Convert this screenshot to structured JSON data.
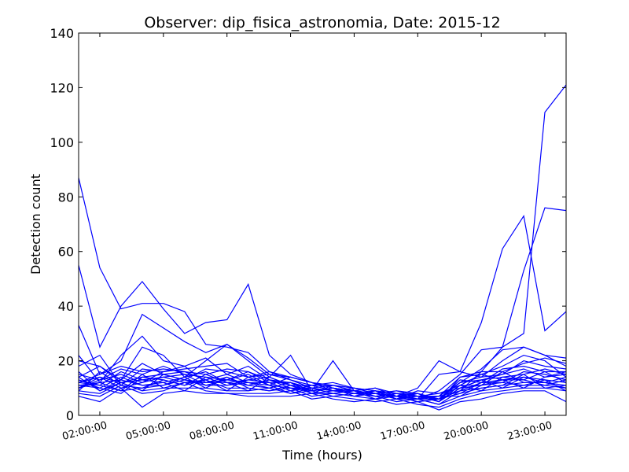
{
  "chart_data": {
    "type": "line",
    "title": "Observer: dip_fisica_astronomia, Date: 2015-12",
    "xlabel": "Time (hours)",
    "ylabel": "Detection count",
    "x_unit": "hour of day",
    "xlim": [
      1,
      24
    ],
    "ylim": [
      0,
      140
    ],
    "y_ticks": [
      0,
      20,
      40,
      60,
      80,
      100,
      120,
      140
    ],
    "x_ticks": [
      {
        "value": 2,
        "label": "02:00:00"
      },
      {
        "value": 5,
        "label": "05:00:00"
      },
      {
        "value": 8,
        "label": "08:00:00"
      },
      {
        "value": 11,
        "label": "11:00:00"
      },
      {
        "value": 14,
        "label": "14:00:00"
      },
      {
        "value": 17,
        "label": "17:00:00"
      },
      {
        "value": 20,
        "label": "20:00:00"
      },
      {
        "value": 23,
        "label": "23:00:00"
      }
    ],
    "line_color": "#0000ff",
    "x": [
      1,
      2,
      3,
      4,
      5,
      6,
      7,
      8,
      9,
      10,
      11,
      12,
      13,
      14,
      15,
      16,
      17,
      18,
      19,
      20,
      21,
      22,
      23,
      24
    ],
    "series": [
      {
        "values": [
          87,
          54,
          39,
          41,
          41,
          38,
          26,
          25,
          23,
          16,
          14,
          12,
          11,
          10,
          9,
          8,
          7,
          6,
          9,
          16,
          25,
          30,
          111,
          121
        ]
      },
      {
        "values": [
          55,
          25,
          40,
          49,
          39,
          30,
          34,
          35,
          48,
          22,
          15,
          12,
          10,
          9,
          8,
          7,
          6,
          9,
          15,
          24,
          25,
          53,
          76,
          75
        ]
      },
      {
        "values": [
          33,
          15,
          20,
          37,
          32,
          27,
          23,
          26,
          21,
          15,
          14,
          12,
          10,
          9,
          8,
          7,
          6,
          15,
          16,
          34,
          61,
          73,
          31,
          38
        ]
      },
      {
        "values": [
          22,
          12,
          22,
          29,
          20,
          18,
          21,
          15,
          18,
          13,
          12,
          10,
          9,
          9,
          8,
          7,
          8,
          6,
          12,
          17,
          24,
          25,
          22,
          18
        ]
      },
      {
        "values": [
          20,
          18,
          13,
          25,
          22,
          14,
          20,
          26,
          20,
          14,
          22,
          9,
          20,
          9,
          10,
          7,
          10,
          20,
          16,
          14,
          20,
          25,
          22,
          21
        ]
      },
      {
        "values": [
          18,
          22,
          11,
          17,
          16,
          17,
          18,
          19,
          14,
          15,
          13,
          11,
          11,
          10,
          8,
          9,
          8,
          5,
          14,
          15,
          18,
          22,
          20,
          14
        ]
      },
      {
        "values": [
          15,
          13,
          17,
          15,
          18,
          15,
          14,
          13,
          16,
          12,
          12,
          9,
          10,
          8,
          9,
          7,
          7,
          7,
          12,
          14,
          15,
          20,
          18,
          17
        ]
      },
      {
        "values": [
          14,
          18,
          12,
          14,
          15,
          16,
          13,
          15,
          12,
          11,
          10,
          10,
          9,
          9,
          7,
          8,
          6,
          6,
          13,
          12,
          17,
          18,
          16,
          16
        ]
      },
      {
        "values": [
          13,
          11,
          16,
          13,
          12,
          14,
          16,
          12,
          13,
          14,
          11,
          9,
          10,
          7,
          8,
          6,
          9,
          8,
          10,
          13,
          14,
          15,
          17,
          15
        ]
      },
      {
        "values": [
          12,
          14,
          10,
          12,
          14,
          12,
          12,
          14,
          11,
          10,
          12,
          8,
          9,
          8,
          7,
          8,
          7,
          5,
          11,
          11,
          12,
          16,
          15,
          13
        ]
      },
      {
        "values": [
          11,
          10,
          14,
          11,
          11,
          13,
          11,
          11,
          12,
          12,
          9,
          10,
          8,
          9,
          8,
          6,
          6,
          4,
          9,
          12,
          13,
          14,
          13,
          12
        ]
      },
      {
        "values": [
          10,
          12,
          9,
          10,
          13,
          11,
          13,
          10,
          10,
          9,
          10,
          7,
          8,
          7,
          6,
          7,
          5,
          6,
          8,
          10,
          11,
          12,
          12,
          11
        ]
      },
      {
        "values": [
          9,
          8,
          12,
          9,
          10,
          10,
          10,
          9,
          9,
          10,
          8,
          9,
          7,
          8,
          7,
          5,
          6,
          4,
          7,
          9,
          10,
          11,
          11,
          10
        ]
      },
      {
        "values": [
          8,
          7,
          11,
          8,
          9,
          12,
          9,
          8,
          8,
          8,
          9,
          6,
          7,
          6,
          5,
          6,
          4,
          3,
          6,
          8,
          9,
          10,
          10,
          9
        ]
      },
      {
        "values": [
          7,
          5,
          10,
          3,
          8,
          9,
          8,
          8,
          7,
          7,
          7,
          8,
          6,
          5,
          6,
          4,
          5,
          2,
          5,
          6,
          8,
          9,
          9,
          5
        ]
      },
      {
        "values": [
          12,
          15,
          18,
          16,
          17,
          16,
          15,
          17,
          16,
          13,
          11,
          11,
          12,
          10,
          9,
          8,
          7,
          7,
          14,
          16,
          16,
          19,
          21,
          19
        ]
      },
      {
        "values": [
          16,
          9,
          13,
          19,
          15,
          13,
          17,
          16,
          14,
          16,
          13,
          10,
          11,
          9,
          10,
          8,
          8,
          6,
          12,
          13,
          15,
          17,
          14,
          15
        ]
      },
      {
        "values": [
          10,
          13,
          15,
          12,
          16,
          18,
          12,
          13,
          15,
          11,
          14,
          12,
          9,
          10,
          8,
          9,
          7,
          8,
          11,
          15,
          13,
          13,
          16,
          12
        ]
      },
      {
        "values": [
          13,
          10,
          8,
          14,
          13,
          11,
          15,
          12,
          11,
          13,
          10,
          9,
          10,
          8,
          9,
          6,
          7,
          5,
          10,
          11,
          16,
          12,
          12,
          14
        ]
      },
      {
        "values": [
          9,
          16,
          11,
          10,
          11,
          14,
          10,
          14,
          10,
          9,
          11,
          8,
          8,
          9,
          7,
          7,
          6,
          7,
          9,
          10,
          11,
          15,
          10,
          11
        ]
      },
      {
        "values": [
          11,
          12,
          13,
          11,
          12,
          9,
          14,
          11,
          13,
          12,
          9,
          11,
          9,
          8,
          8,
          7,
          5,
          6,
          8,
          12,
          12,
          11,
          13,
          9
        ]
      },
      {
        "values": [
          14,
          9,
          12,
          13,
          14,
          15,
          11,
          13,
          12,
          10,
          12,
          9,
          10,
          9,
          6,
          8,
          7,
          6,
          11,
          9,
          14,
          13,
          11,
          13
        ]
      },
      {
        "values": [
          12,
          11,
          9,
          15,
          10,
          12,
          13,
          9,
          14,
          11,
          8,
          10,
          8,
          7,
          9,
          6,
          8,
          5,
          10,
          13,
          10,
          14,
          12,
          10
        ]
      },
      {
        "values": [
          10,
          14,
          12,
          9,
          15,
          13,
          12,
          12,
          9,
          14,
          11,
          8,
          11,
          9,
          8,
          7,
          6,
          7,
          7,
          11,
          13,
          10,
          14,
          16
        ]
      }
    ]
  }
}
